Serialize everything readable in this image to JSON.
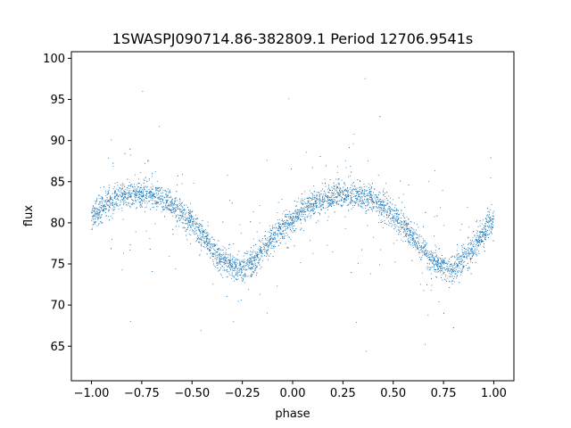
{
  "chart_data": {
    "type": "scatter",
    "title": "1SWASPJ090714.86-382809.1 Period 12706.9541s",
    "xlabel": "phase",
    "ylabel": "flux",
    "xlim": [
      -1.1,
      1.1
    ],
    "ylim": [
      60.8,
      100.8
    ],
    "x_ticks": [
      -1.0,
      -0.75,
      -0.5,
      -0.25,
      0.0,
      0.25,
      0.5,
      0.75,
      1.0
    ],
    "x_tick_labels": [
      "−1.00",
      "−0.75",
      "−0.50",
      "−0.25",
      "0.00",
      "0.25",
      "0.50",
      "0.75",
      "1.00"
    ],
    "y_ticks": [
      65,
      70,
      75,
      80,
      85,
      90,
      95,
      100
    ],
    "y_tick_labels": [
      "65",
      "70",
      "75",
      "80",
      "85",
      "90",
      "95",
      "100"
    ],
    "grid": false,
    "legend": "none",
    "marker_color": "#1f77b4",
    "series": [
      {
        "x": [
          -1.0,
          -0.95,
          -0.9,
          -0.85,
          -0.8,
          -0.75,
          -0.7,
          -0.65,
          -0.6,
          -0.55,
          -0.5,
          -0.45,
          -0.4,
          -0.35,
          -0.3,
          -0.25,
          -0.2,
          -0.15,
          -0.1,
          -0.05,
          0.0,
          0.05,
          0.1,
          0.15,
          0.2,
          0.25,
          0.3,
          0.35,
          0.4,
          0.45,
          0.5,
          0.55,
          0.6,
          0.65,
          0.7,
          0.75,
          0.8,
          0.85,
          0.9,
          0.95,
          1.0
        ],
        "y": [
          80.7,
          81.8,
          82.6,
          83.2,
          83.4,
          83.5,
          83.4,
          83.0,
          82.2,
          81.2,
          80.0,
          78.4,
          76.8,
          75.4,
          74.6,
          74.5,
          75.2,
          76.6,
          78.0,
          79.4,
          80.5,
          81.4,
          82.2,
          82.8,
          83.2,
          83.4,
          83.4,
          83.2,
          82.8,
          82.0,
          81.0,
          79.8,
          78.2,
          76.6,
          75.2,
          74.6,
          74.6,
          75.4,
          77.0,
          78.8,
          80.4
        ]
      }
    ]
  }
}
